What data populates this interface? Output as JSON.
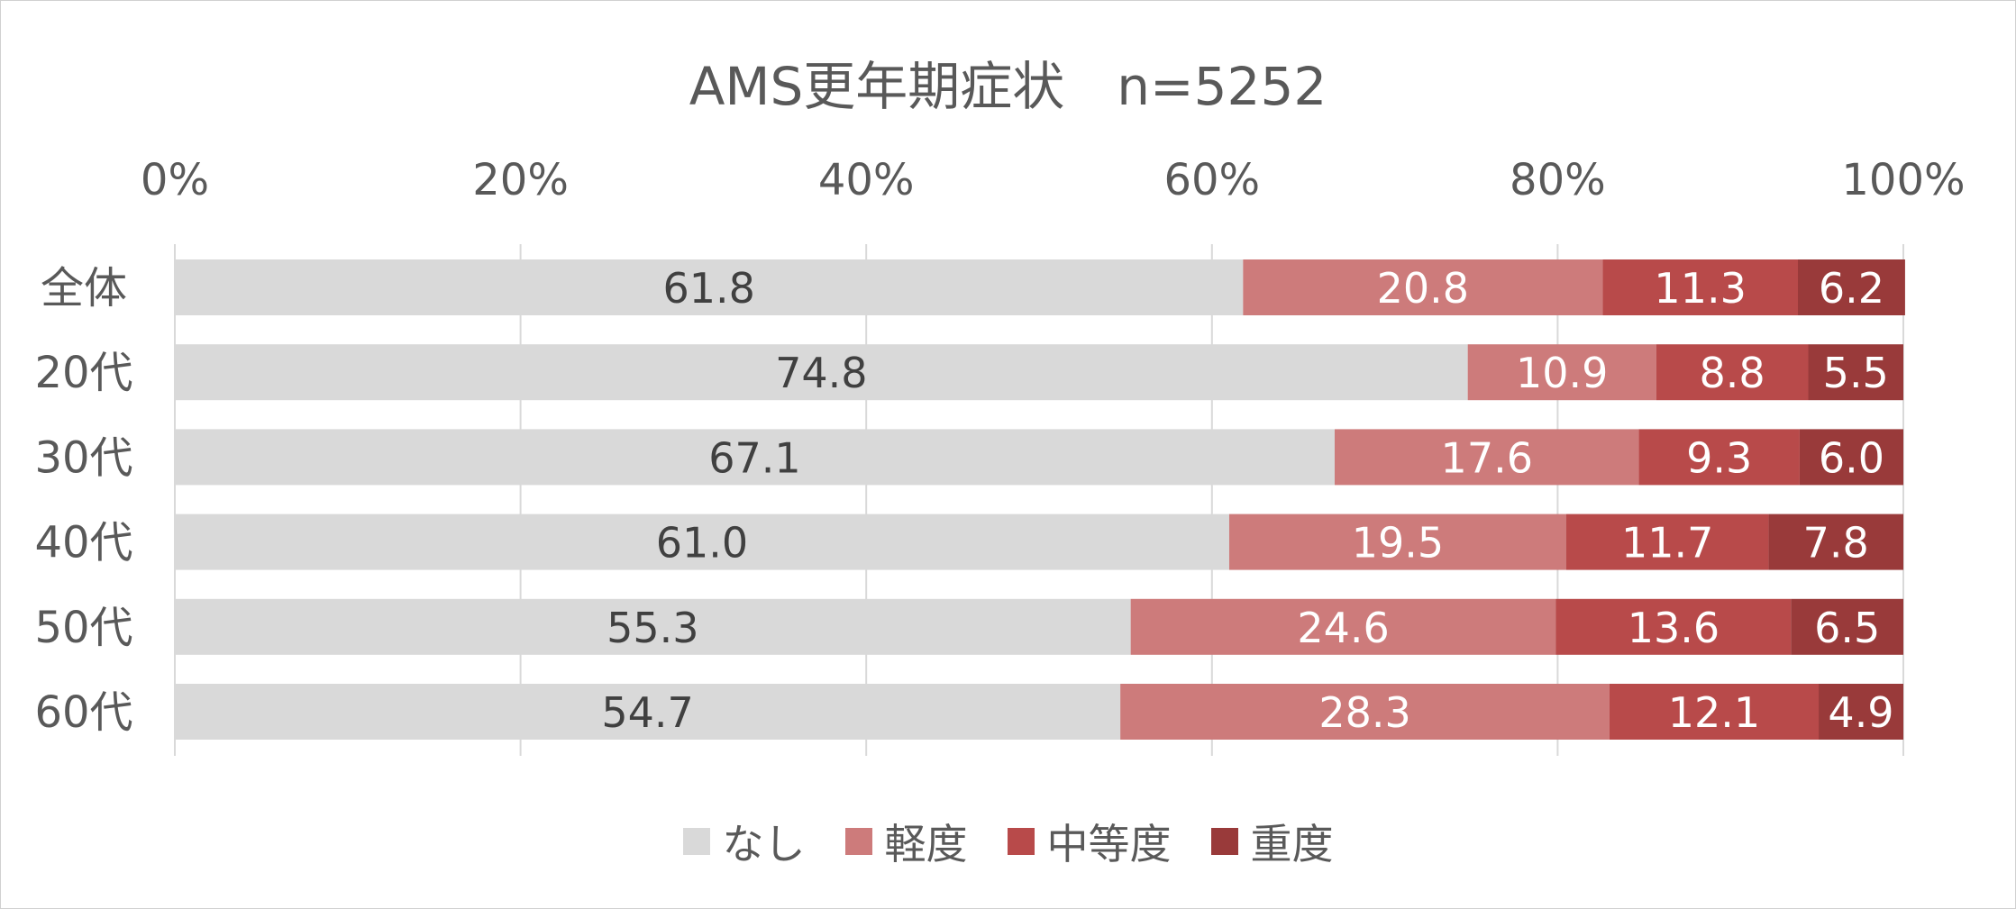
{
  "chart_data": {
    "type": "bar",
    "orientation": "horizontal",
    "stacked": true,
    "title": "AMS更年期症状　n=5252",
    "x_ticks": [
      "0%",
      "20%",
      "40%",
      "60%",
      "80%",
      "100%"
    ],
    "x_axis_position": "top",
    "xlim": [
      0,
      100
    ],
    "grid": true,
    "legend_position": "bottom",
    "categories": [
      "全体",
      "20代",
      "30代",
      "40代",
      "50代",
      "60代"
    ],
    "series": [
      {
        "name": "なし",
        "color": "#d9d9d9",
        "label_color": "#404040",
        "values": [
          61.8,
          74.8,
          67.1,
          61.0,
          55.3,
          54.7
        ],
        "labels": [
          "61.8",
          "74.8",
          "67.1",
          "61.0",
          "55.3",
          "54.7"
        ]
      },
      {
        "name": "軽度",
        "color": "#cd7b7b",
        "label_color": "#ffffff",
        "values": [
          20.8,
          10.9,
          17.6,
          19.5,
          24.6,
          28.3
        ],
        "labels": [
          "20.8",
          "10.9",
          "17.6",
          "19.5",
          "24.6",
          "28.3"
        ]
      },
      {
        "name": "中等度",
        "color": "#b84a4a",
        "label_color": "#ffffff",
        "values": [
          11.3,
          8.8,
          9.3,
          11.7,
          13.6,
          12.1
        ],
        "labels": [
          "11.3",
          "8.8",
          "9.3",
          "11.7",
          "13.6",
          "12.1"
        ]
      },
      {
        "name": "重度",
        "color": "#993a3a",
        "label_color": "#ffffff",
        "values": [
          6.2,
          5.5,
          6.0,
          7.8,
          6.5,
          4.9
        ],
        "labels": [
          "6.2",
          "5.5",
          "6.0",
          "7.8",
          "6.5",
          "4.9"
        ]
      }
    ]
  }
}
